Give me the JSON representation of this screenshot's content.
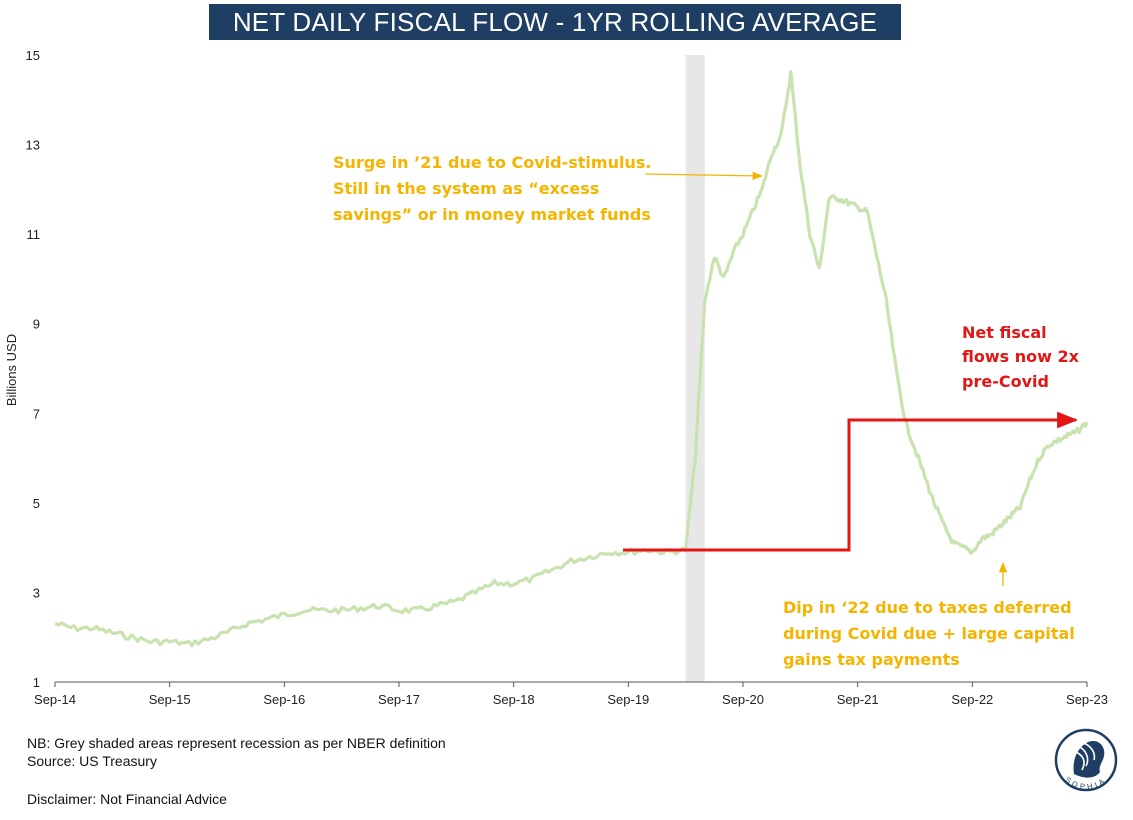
{
  "title": "NET DAILY FISCAL FLOW - 1YR ROLLING AVERAGE",
  "chart_data": {
    "type": "line",
    "title": "NET DAILY FISCAL FLOW - 1YR ROLLING AVERAGE",
    "ylabel": "Billions USD",
    "xlabel": "",
    "ylim": [
      1,
      15
    ],
    "yticks": [
      1,
      3,
      5,
      7,
      9,
      11,
      13,
      15
    ],
    "xlim": [
      "2014-09",
      "2023-09"
    ],
    "xticks": [
      "Sep-14",
      "Sep-15",
      "Sep-16",
      "Sep-17",
      "Sep-18",
      "Sep-19",
      "Sep-20",
      "Sep-21",
      "Sep-22",
      "Sep-23"
    ],
    "grid": false,
    "legend": "none",
    "recession_band": {
      "start": "2020-03",
      "end": "2020-05"
    },
    "series": [
      {
        "color": "#c8e3b0",
        "x": [
          "2014-09",
          "2014-11",
          "2015-01",
          "2015-03",
          "2015-05",
          "2015-07",
          "2015-09",
          "2015-11",
          "2016-01",
          "2016-03",
          "2016-05",
          "2016-07",
          "2016-09",
          "2016-11",
          "2017-01",
          "2017-03",
          "2017-05",
          "2017-07",
          "2017-09",
          "2017-11",
          "2018-01",
          "2018-03",
          "2018-05",
          "2018-07",
          "2018-09",
          "2018-11",
          "2019-01",
          "2019-03",
          "2019-05",
          "2019-07",
          "2019-09",
          "2019-11",
          "2020-01",
          "2020-03",
          "2020-04",
          "2020-05",
          "2020-06",
          "2020-07",
          "2020-08",
          "2020-09",
          "2020-10",
          "2020-11",
          "2020-12",
          "2021-01",
          "2021-02",
          "2021-03",
          "2021-04",
          "2021-05",
          "2021-06",
          "2021-07",
          "2021-08",
          "2021-09",
          "2021-10",
          "2021-11",
          "2021-12",
          "2022-01",
          "2022-02",
          "2022-03",
          "2022-04",
          "2022-05",
          "2022-06",
          "2022-07",
          "2022-08",
          "2022-09",
          "2022-10",
          "2022-11",
          "2022-12",
          "2023-01",
          "2023-02",
          "2023-03",
          "2023-04",
          "2023-05",
          "2023-06",
          "2023-07",
          "2023-08",
          "2023-09"
        ],
        "values": [
          2.3,
          2.2,
          2.2,
          2.1,
          2.0,
          1.9,
          1.9,
          1.85,
          1.95,
          2.1,
          2.3,
          2.4,
          2.5,
          2.6,
          2.6,
          2.6,
          2.65,
          2.7,
          2.6,
          2.6,
          2.7,
          2.8,
          3.0,
          3.2,
          3.2,
          3.3,
          3.5,
          3.7,
          3.8,
          3.9,
          3.9,
          3.95,
          3.9,
          3.95,
          6.0,
          9.5,
          10.5,
          10.0,
          10.6,
          11.0,
          11.5,
          12.0,
          12.8,
          13.2,
          14.6,
          12.5,
          11.0,
          10.2,
          11.8,
          11.8,
          11.7,
          11.6,
          11.5,
          10.5,
          9.5,
          8.0,
          6.8,
          6.2,
          5.6,
          5.0,
          4.5,
          4.1,
          4.0,
          3.9,
          4.2,
          4.3,
          4.5,
          4.7,
          4.9,
          5.5,
          6.0,
          6.3,
          6.4,
          6.5,
          6.6,
          6.8
        ]
      }
    ],
    "annotations": [
      {
        "id": "surge",
        "lines": [
          "Surge in ’21 due to Covid-stimulus.",
          "Still in the system as “excess",
          "savings” or in money market funds"
        ],
        "color": "#f5b400"
      },
      {
        "id": "fiscal2x",
        "lines": [
          "Net fiscal",
          "flows now 2x",
          "pre-Covid"
        ],
        "color": "#e41515"
      },
      {
        "id": "dip",
        "lines": [
          "Dip in ‘22 due to taxes deferred",
          "during Covid due + large capital",
          "gains tax payments"
        ],
        "color": "#f5b400"
      }
    ]
  },
  "footnotes": {
    "nb": "NB: Grey shaded areas represent recession as per NBER definition",
    "source": "Source: US Treasury",
    "disclaimer": "Disclaimer: Not Financial Advice"
  },
  "logo": {
    "text": "SOPHIA",
    "icon": "sophia-logo-icon"
  }
}
